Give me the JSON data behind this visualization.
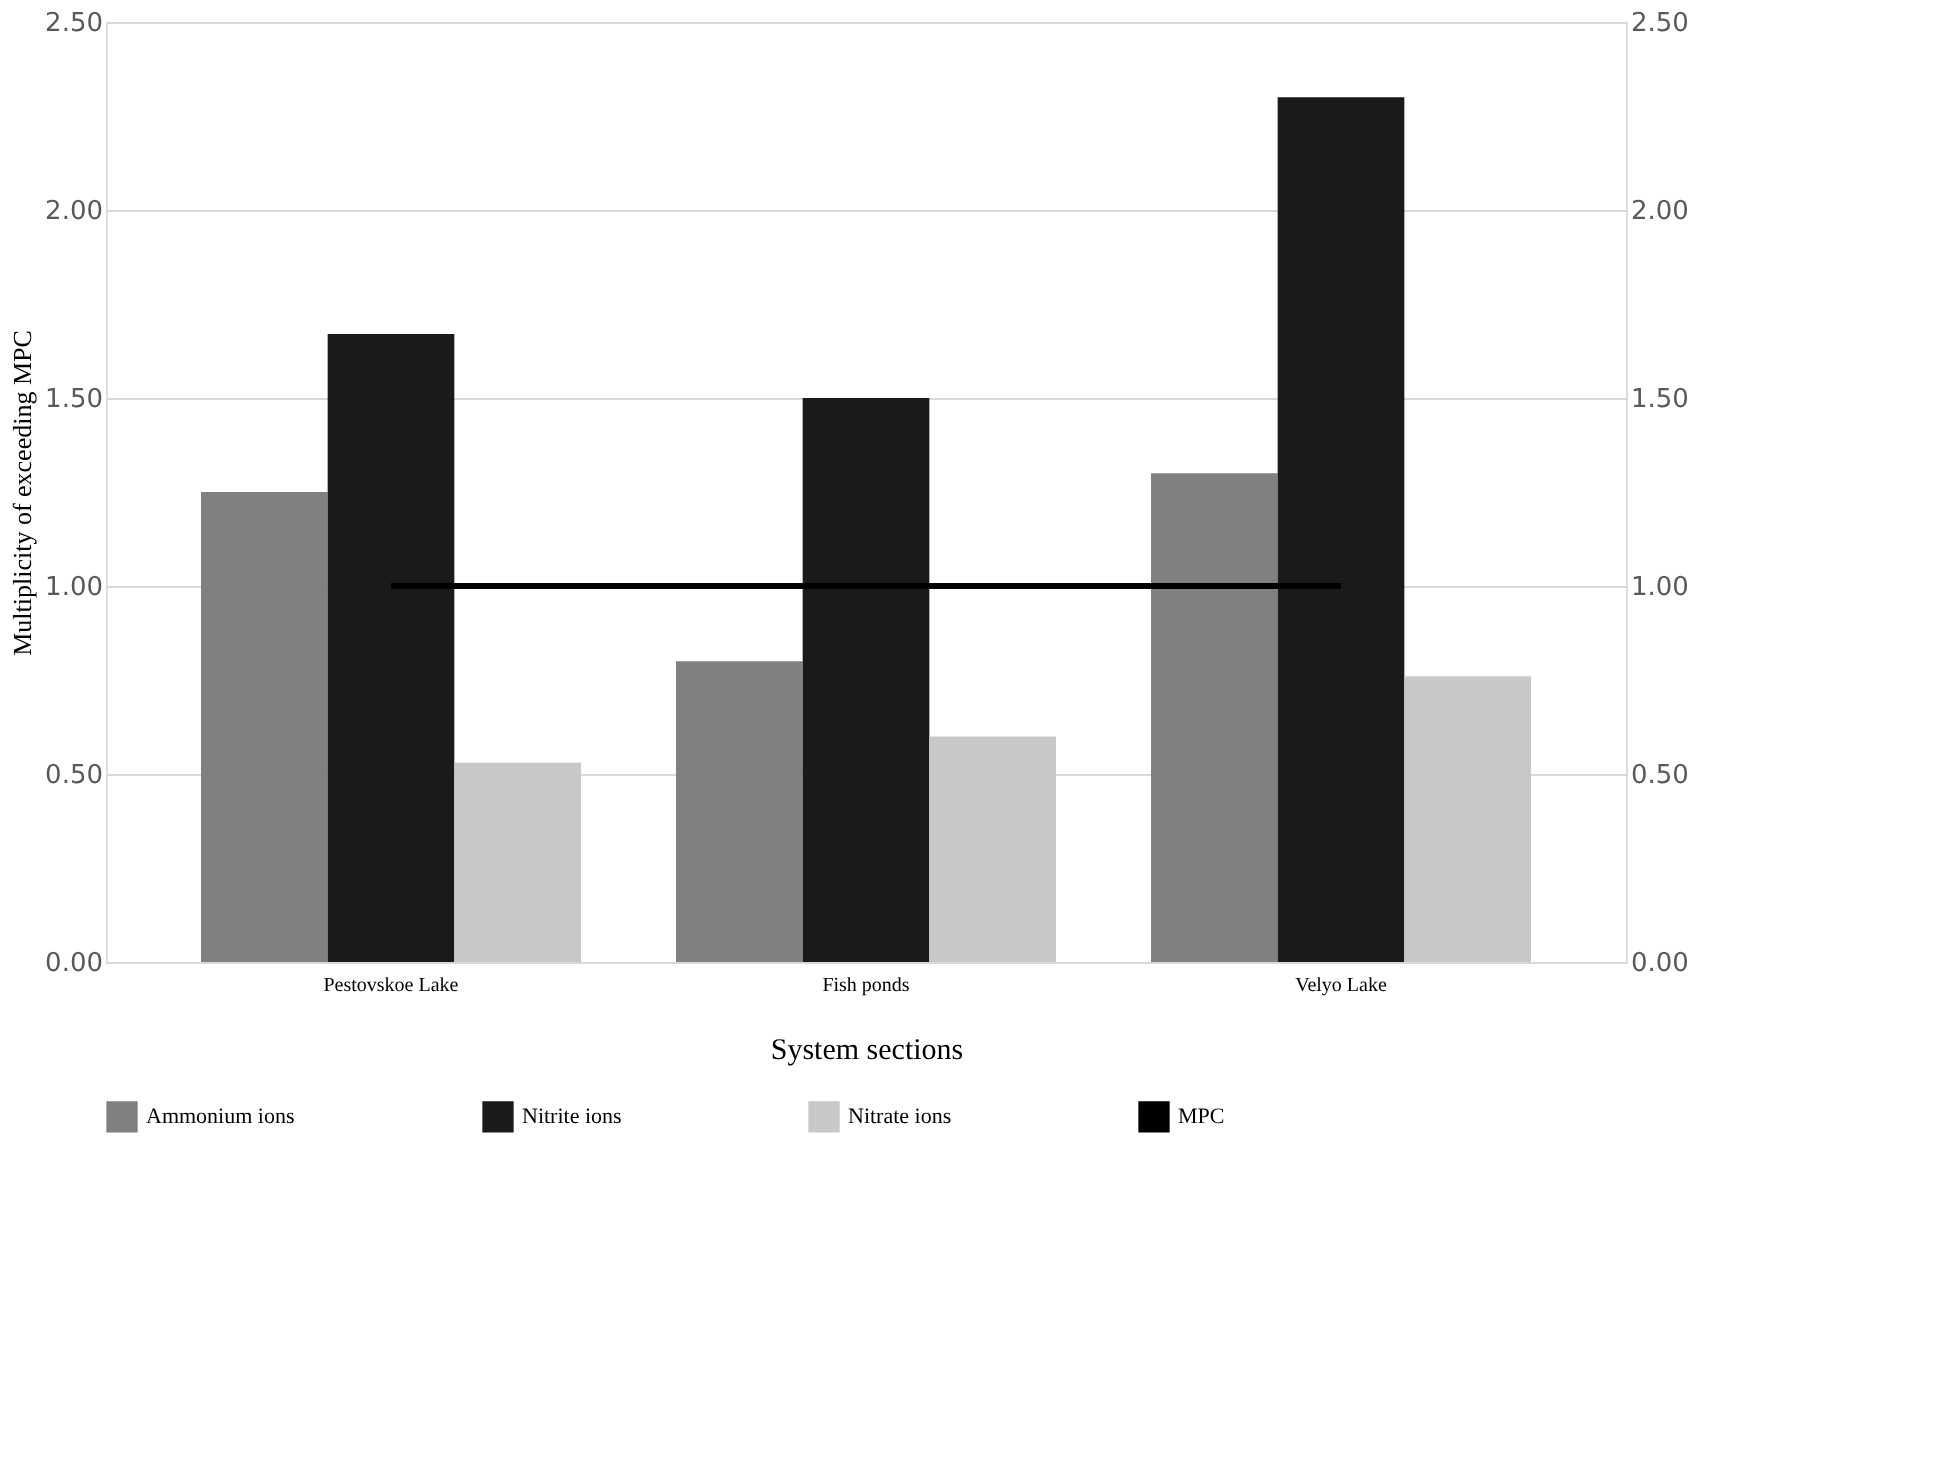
{
  "chart_data": {
    "type": "bar",
    "xlabel": "System sections",
    "ylabel": "Multiplicity of exceeding MPC",
    "categories": [
      "Pestovskoe Lake",
      "Fish ponds",
      "Velyo Lake"
    ],
    "series": [
      {
        "name": "Ammonium ions",
        "color": "#808080",
        "values": [
          1.25,
          0.8,
          1.3
        ]
      },
      {
        "name": "Nitrite ions",
        "color": "#1a1a1a",
        "values": [
          1.67,
          1.5,
          2.3
        ]
      },
      {
        "name": "Nitrate ions",
        "color": "#c8c8c8",
        "values": [
          0.53,
          0.6,
          0.76
        ]
      },
      {
        "name": "MPC",
        "type": "line",
        "color": "#000000",
        "values": [
          1.0,
          1.0,
          1.0
        ]
      }
    ],
    "ylim": [
      0,
      2.5
    ],
    "yticks": [
      {
        "value": 0,
        "label": "0.00"
      },
      {
        "value": 0.5,
        "label": "0.50"
      },
      {
        "value": 1,
        "label": "1.00"
      },
      {
        "value": 1.5,
        "label": "1.50"
      },
      {
        "value": 2,
        "label": "2.00"
      },
      {
        "value": 2.5,
        "label": "2.50"
      }
    ],
    "y2lim": [
      0,
      2.5
    ],
    "y2ticks": [
      {
        "value": 0,
        "label": "0.00"
      },
      {
        "value": 0.5,
        "label": "0.50"
      },
      {
        "value": 1,
        "label": "1.00"
      },
      {
        "value": 1.5,
        "label": "1.50"
      },
      {
        "value": 2,
        "label": "2.00"
      },
      {
        "value": 2.5,
        "label": "2.50"
      }
    ],
    "grid": "y",
    "legend": "bottom"
  }
}
